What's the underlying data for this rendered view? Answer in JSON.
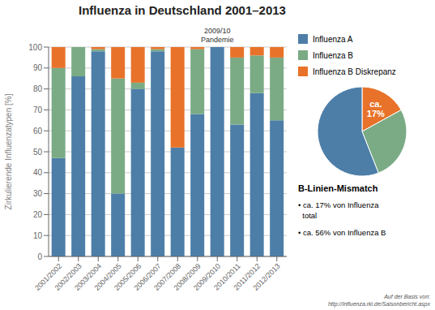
{
  "chart_data": [
    {
      "type": "bar",
      "title": "Influenza in Deutschland 2001–2013",
      "y_label": "Zirkulierende Influenzatypen [%]",
      "categories": [
        "2001/2002",
        "2002/2003",
        "2003/2004",
        "2004/2005",
        "2005/2006",
        "2006/2007",
        "2007/2008",
        "2008/2009",
        "2009/2010",
        "2010/2011",
        "2011/2012",
        "2012/2013"
      ],
      "series": [
        {
          "name": "Influenza A",
          "color": "#4d7ea8",
          "values": [
            47,
            86,
            98,
            30,
            80,
            98,
            52,
            68,
            100,
            63,
            78,
            65
          ]
        },
        {
          "name": "Influenza B",
          "color": "#7aab85",
          "values": [
            43,
            14,
            1,
            55,
            3,
            1,
            0,
            31,
            0,
            32,
            18,
            30
          ]
        },
        {
          "name": "Influenza B Diskrepanz",
          "color": "#e8722a",
          "values": [
            10,
            0,
            1,
            15,
            17,
            1,
            48,
            1,
            0,
            5,
            4,
            5
          ]
        }
      ],
      "stacked": true,
      "ylim": [
        0,
        100
      ],
      "yticks": [
        0,
        10,
        20,
        30,
        40,
        50,
        60,
        70,
        80,
        90,
        100
      ],
      "grid": true,
      "legend": "right",
      "annotations": [
        {
          "text": "2009/10\nPandemie",
          "x": "2009/2010"
        },
        {
          "text": "Auf der Basis von:\nhttp://Influenza.rki.de/Saisonbericht.aspx"
        }
      ]
    },
    {
      "type": "pie",
      "title": "B-Linien-Mismatch",
      "values": [
        17,
        27,
        56
      ],
      "colors": [
        "#e8722a",
        "#7aab85",
        "#4d7ea8"
      ],
      "annotations": [
        {
          "text": "ca.\n17%",
          "slice": 0
        },
        {
          "text": "• ca. 17% von Influenza\n  total"
        },
        {
          "text": "• ca. 56% von Influenza B"
        }
      ]
    }
  ]
}
